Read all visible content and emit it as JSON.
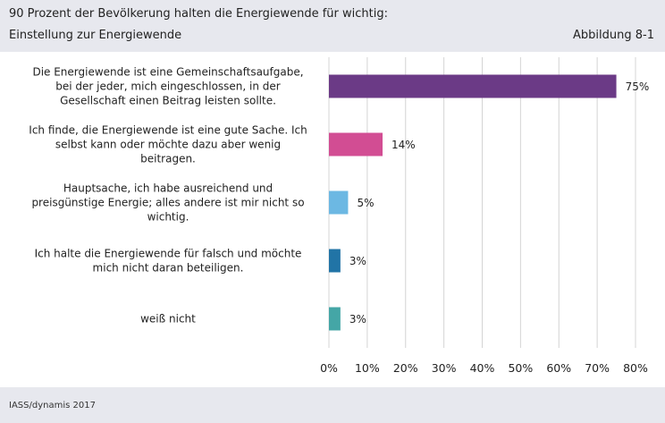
{
  "header": {
    "title": "90 Prozent der Bevölkerung halten die Energiewende für wichtig:",
    "subtitle": "Einstellung zur Energiewende",
    "figure_number": "Abbildung 8-1"
  },
  "footer": {
    "source": "IASS/dynamis 2017"
  },
  "chart_data": {
    "type": "bar",
    "orientation": "horizontal",
    "title": "90 Prozent der Bevölkerung halten die Energiewende für wichtig:",
    "subtitle": "Einstellung zur Energiewende",
    "categories": [
      [
        "Die Energiewende ist eine Gemeinschaftsaufgabe,",
        "bei der jeder, mich eingeschlossen, in der",
        "Gesellschaft einen Beitrag leisten sollte."
      ],
      [
        "Ich finde, die Energiewende ist eine gute Sache. Ich",
        "selbst kann oder möchte dazu aber wenig",
        "beitragen."
      ],
      [
        "Hauptsache, ich habe ausreichend und",
        "preisgünstige Energie; alles andere ist mir nicht so",
        "wichtig."
      ],
      [
        "Ich halte die Energiewende für falsch und möchte",
        "mich nicht daran beteiligen."
      ],
      [
        "weiß nicht"
      ]
    ],
    "values": [
      75,
      14,
      5,
      3,
      3
    ],
    "value_labels": [
      "75%",
      "14%",
      "5%",
      "3%",
      "3%"
    ],
    "colors": [
      "#6b3a86",
      "#d24d93",
      "#6cb8e3",
      "#2174a6",
      "#44a6a6"
    ],
    "xlim": [
      0,
      80
    ],
    "xticks": [
      0,
      10,
      20,
      30,
      40,
      50,
      60,
      70,
      80
    ],
    "xtick_labels": [
      "0%",
      "10%",
      "20%",
      "30%",
      "40%",
      "50%",
      "60%",
      "70%",
      "80%"
    ],
    "grid": "vertical",
    "xlabel": "",
    "ylabel": ""
  }
}
